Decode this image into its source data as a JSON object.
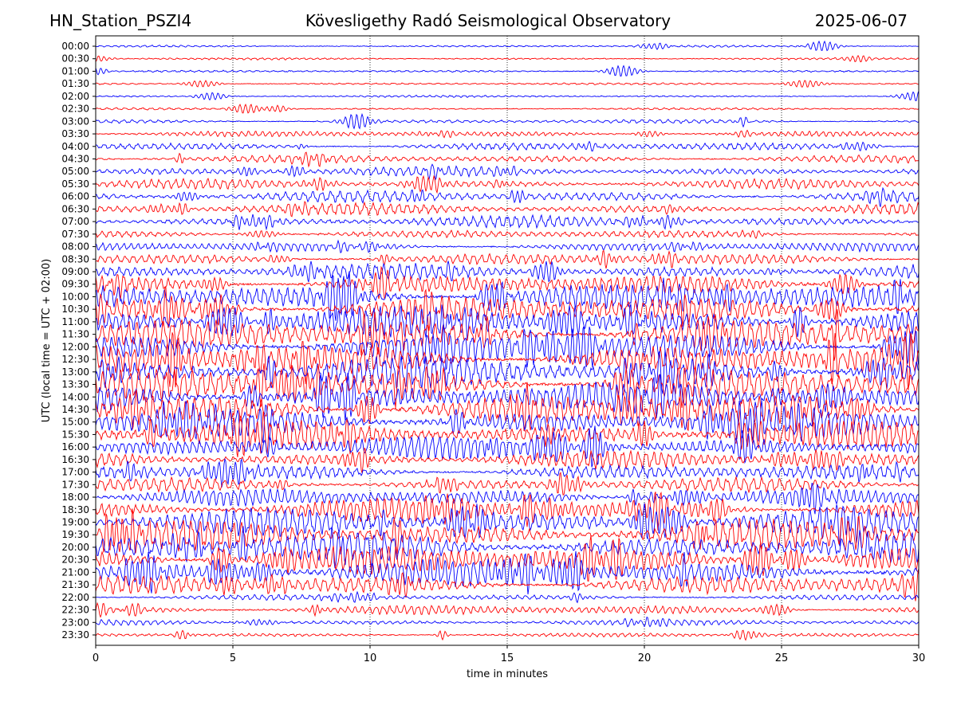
{
  "header": {
    "station": "HN_Station_PSZI4",
    "observatory": "Kövesligethy Radó Seismological Observatory",
    "date": "2025-06-07"
  },
  "chart_data": {
    "type": "line",
    "title": "Kövesligethy Radó Seismological Observatory",
    "xlabel": "time in minutes",
    "ylabel": "UTC (local time = UTC + 02:00)",
    "xlim": [
      0,
      30
    ],
    "xticks": [
      0,
      5,
      10,
      15,
      20,
      25,
      30
    ],
    "grid": "vertical dotted at x ticks",
    "trace_colors": [
      "#0000ff",
      "#ff0000"
    ],
    "series": [
      {
        "name": "00:00",
        "amp": 1
      },
      {
        "name": "00:30",
        "amp": 1
      },
      {
        "name": "01:00",
        "amp": 1
      },
      {
        "name": "01:30",
        "amp": 1
      },
      {
        "name": "02:00",
        "amp": 1
      },
      {
        "name": "02:30",
        "amp": 1
      },
      {
        "name": "03:00",
        "amp": 2
      },
      {
        "name": "03:30",
        "amp": 3
      },
      {
        "name": "04:00",
        "amp": 4
      },
      {
        "name": "04:30",
        "amp": 4
      },
      {
        "name": "05:00",
        "amp": 5
      },
      {
        "name": "05:30",
        "amp": 5
      },
      {
        "name": "06:00",
        "amp": 6
      },
      {
        "name": "06:30",
        "amp": 6
      },
      {
        "name": "07:00",
        "amp": 6
      },
      {
        "name": "07:30",
        "amp": 4
      },
      {
        "name": "08:00",
        "amp": 5
      },
      {
        "name": "08:30",
        "amp": 6
      },
      {
        "name": "09:00",
        "amp": 8
      },
      {
        "name": "09:30",
        "amp": 10
      },
      {
        "name": "10:00",
        "amp": 14
      },
      {
        "name": "10:30",
        "amp": 14
      },
      {
        "name": "11:00",
        "amp": 16
      },
      {
        "name": "11:30",
        "amp": 16
      },
      {
        "name": "12:00",
        "amp": 16
      },
      {
        "name": "12:30",
        "amp": 16
      },
      {
        "name": "13:00",
        "amp": 16
      },
      {
        "name": "13:30",
        "amp": 16
      },
      {
        "name": "14:00",
        "amp": 16
      },
      {
        "name": "14:30",
        "amp": 16
      },
      {
        "name": "15:00",
        "amp": 15
      },
      {
        "name": "15:30",
        "amp": 14
      },
      {
        "name": "16:00",
        "amp": 12
      },
      {
        "name": "16:30",
        "amp": 9
      },
      {
        "name": "17:00",
        "amp": 8
      },
      {
        "name": "17:30",
        "amp": 7
      },
      {
        "name": "18:00",
        "amp": 9
      },
      {
        "name": "18:30",
        "amp": 12
      },
      {
        "name": "19:00",
        "amp": 14
      },
      {
        "name": "19:30",
        "amp": 15
      },
      {
        "name": "20:00",
        "amp": 15
      },
      {
        "name": "20:30",
        "amp": 15
      },
      {
        "name": "21:00",
        "amp": 14
      },
      {
        "name": "21:30",
        "amp": 10
      },
      {
        "name": "22:00",
        "amp": 3
      },
      {
        "name": "22:30",
        "amp": 5
      },
      {
        "name": "23:00",
        "amp": 3
      },
      {
        "name": "23:30",
        "amp": 2
      }
    ]
  }
}
